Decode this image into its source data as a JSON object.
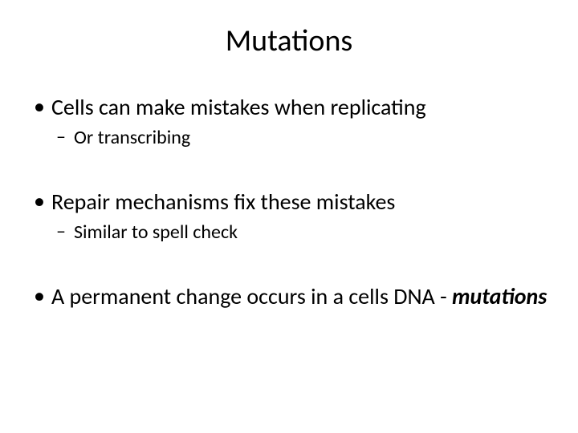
{
  "slide": {
    "title": "Mutations",
    "bullets": [
      {
        "text": "Cells can make mistakes when replicating",
        "sub": [
          {
            "text": "Or transcribing"
          }
        ]
      },
      {
        "text": "Repair mechanisms fix these mistakes",
        "sub": [
          {
            "text": "Similar to spell check"
          }
        ]
      },
      {
        "text_plain": "A permanent change occurs in a cells DNA - ",
        "text_emph": "mutations",
        "sub": []
      }
    ]
  },
  "style": {
    "background_color": "#ffffff",
    "text_color": "#000000",
    "title_fontsize": 38,
    "bullet_fontsize": 28,
    "sub_bullet_fontsize": 24,
    "font_family": "Calibri"
  }
}
